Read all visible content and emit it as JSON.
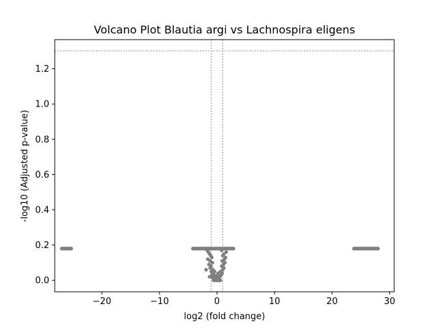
{
  "chart_data": {
    "type": "scatter",
    "title": "Volcano Plot Blautia argi vs Lachnospira eligens",
    "xlabel": "log2 (fold change)",
    "ylabel": "-log10 (Adjusted p-value)",
    "xlim": [
      -28.2,
      30.8
    ],
    "ylim": [
      -0.065,
      1.365
    ],
    "xticks": [
      -20,
      -10,
      0,
      10,
      20,
      30
    ],
    "yticks": [
      0.0,
      0.2,
      0.4,
      0.6,
      0.8,
      1.0,
      1.2
    ],
    "grid": false,
    "point_color": "#808080",
    "threshold_color": "#808080",
    "thresholds": {
      "x": [
        -1,
        1
      ],
      "y": 1.301
    },
    "clusters": [
      {
        "x_range": [
          -27,
          -25.3
        ],
        "y": 0.18
      },
      {
        "x_range": [
          -4.2,
          2.9
        ],
        "y": 0.18
      },
      {
        "x_range": [
          23.8,
          28
        ],
        "y": 0.18
      }
    ],
    "center_points": [
      [
        -1.7,
        0.17
      ],
      [
        -1.5,
        0.16
      ],
      [
        -1.3,
        0.15
      ],
      [
        -1.1,
        0.14
      ],
      [
        -0.9,
        0.13
      ],
      [
        -1.6,
        0.12
      ],
      [
        -1.2,
        0.11
      ],
      [
        -0.8,
        0.1
      ],
      [
        -1.4,
        0.09
      ],
      [
        -1.0,
        0.08
      ],
      [
        -1.2,
        0.07
      ],
      [
        -0.7,
        0.06
      ],
      [
        -1.9,
        0.06
      ],
      [
        -1.0,
        0.05
      ],
      [
        -0.6,
        0.04
      ],
      [
        -0.9,
        0.03
      ],
      [
        -0.5,
        0.02
      ],
      [
        -0.8,
        0.015
      ],
      [
        -0.4,
        0.01
      ],
      [
        -0.3,
        0.005
      ],
      [
        -0.2,
        0.0
      ],
      [
        0.0,
        0.0
      ],
      [
        0.2,
        0.0
      ],
      [
        0.4,
        0.0
      ],
      [
        0.6,
        0.0
      ],
      [
        0.3,
        0.01
      ],
      [
        0.5,
        0.02
      ],
      [
        0.7,
        0.03
      ],
      [
        0.9,
        0.04
      ],
      [
        0.6,
        0.05
      ],
      [
        1.0,
        0.06
      ],
      [
        1.2,
        0.07
      ],
      [
        0.8,
        0.08
      ],
      [
        1.1,
        0.09
      ],
      [
        1.4,
        0.1
      ],
      [
        0.9,
        0.11
      ],
      [
        1.3,
        0.12
      ],
      [
        1.5,
        0.13
      ],
      [
        1.0,
        0.14
      ],
      [
        1.2,
        0.15
      ],
      [
        1.6,
        0.16
      ],
      [
        0.8,
        0.17
      ],
      [
        -0.4,
        0.05
      ],
      [
        0.1,
        0.03
      ],
      [
        -0.1,
        0.02
      ],
      [
        0.0,
        0.015
      ],
      [
        -0.6,
        0.0
      ],
      [
        -0.5,
        0.03
      ],
      [
        0.2,
        0.04
      ],
      [
        -1.3,
        0.02
      ]
    ]
  }
}
